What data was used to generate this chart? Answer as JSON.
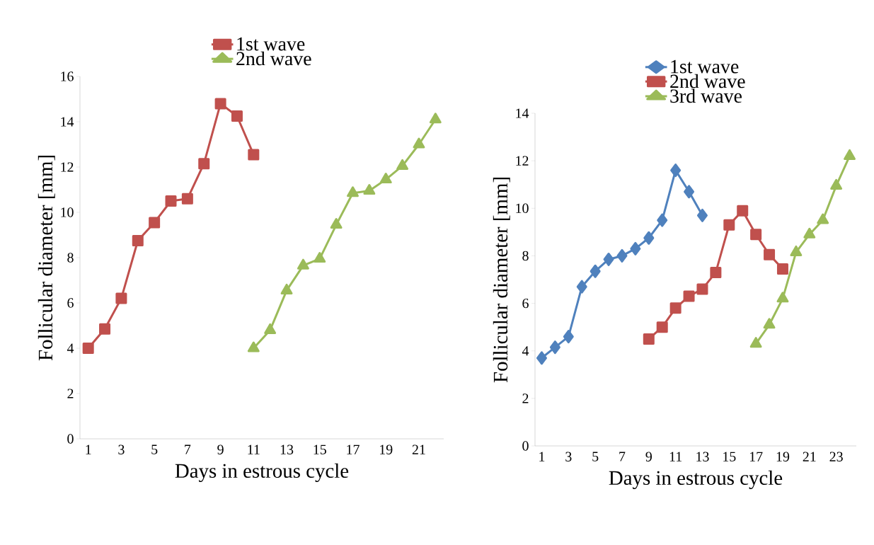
{
  "chart_data": [
    {
      "type": "line",
      "xlabel": "Days in estrous cycle",
      "ylabel": "Follicular diameter [mm]",
      "legend": "top",
      "categories": [
        "1",
        null,
        "3",
        null,
        "5",
        null,
        "7",
        null,
        "9",
        null,
        "11",
        null,
        "13",
        null,
        "15",
        null,
        "17",
        null,
        "19",
        null,
        "21",
        null
      ],
      "series": [
        {
          "name": "1st wave",
          "color": "#c0504d",
          "marker": "square",
          "values": [
            4.0,
            4.85,
            6.2,
            8.75,
            9.55,
            10.5,
            10.6,
            12.15,
            14.8,
            14.25,
            12.55,
            null,
            null,
            null,
            null,
            null,
            null,
            null,
            null,
            null,
            null,
            null
          ]
        },
        {
          "name": "2nd wave",
          "color": "#9bbb59",
          "marker": "triangle",
          "values": [
            null,
            null,
            null,
            null,
            null,
            null,
            null,
            null,
            null,
            null,
            4.0,
            4.8,
            6.55,
            7.65,
            7.95,
            9.45,
            10.85,
            10.95,
            11.45,
            12.05,
            13.0,
            14.1
          ]
        }
      ],
      "ylim": [
        0,
        16
      ],
      "yticks": [
        0,
        2,
        4,
        6,
        8,
        10,
        12,
        14,
        16
      ]
    },
    {
      "type": "line",
      "xlabel": "Days in estrous cycle",
      "ylabel": "Follicular diameter [mm]",
      "legend": "top",
      "categories": [
        "1",
        null,
        "3",
        null,
        "5",
        null,
        "7",
        null,
        "9",
        null,
        "11",
        null,
        "13",
        null,
        "15",
        null,
        "17",
        null,
        "19",
        null,
        "21",
        null,
        "23",
        null
      ],
      "series": [
        {
          "name": "1st wave",
          "color": "#4f81bd",
          "marker": "diamond",
          "values": [
            3.7,
            4.15,
            4.6,
            6.7,
            7.35,
            7.85,
            8.0,
            8.3,
            8.75,
            9.5,
            11.6,
            10.7,
            9.7,
            null,
            null,
            null,
            null,
            null,
            null,
            null,
            null,
            null,
            null,
            null
          ]
        },
        {
          "name": "2nd wave",
          "color": "#c0504d",
          "marker": "square",
          "values": [
            null,
            null,
            null,
            null,
            null,
            null,
            null,
            null,
            4.5,
            5.0,
            5.8,
            6.3,
            6.6,
            7.3,
            9.3,
            9.9,
            8.9,
            8.05,
            7.45,
            null,
            null,
            null,
            null,
            null
          ]
        },
        {
          "name": "3rd wave",
          "color": "#9bbb59",
          "marker": "triangle",
          "values": [
            null,
            null,
            null,
            null,
            null,
            null,
            null,
            null,
            null,
            null,
            null,
            null,
            null,
            null,
            null,
            null,
            4.3,
            5.1,
            6.2,
            8.15,
            8.9,
            9.5,
            10.95,
            12.2
          ]
        }
      ],
      "ylim": [
        0,
        14
      ],
      "yticks": [
        0,
        2,
        4,
        6,
        8,
        10,
        12,
        14
      ]
    }
  ]
}
